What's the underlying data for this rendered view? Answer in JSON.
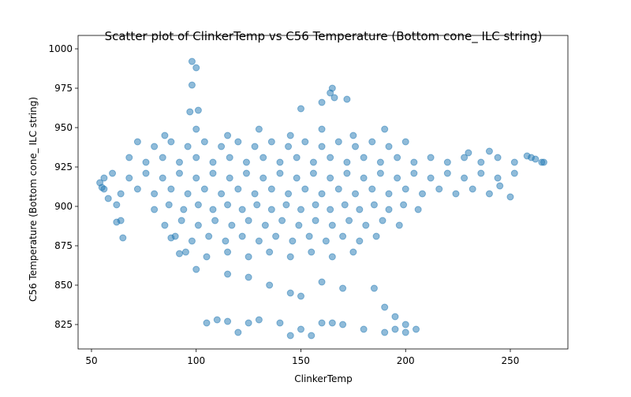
{
  "chart_data": {
    "type": "scatter",
    "title": "Scatter plot of ClinkerTemp vs C56 Temperature (Bottom cone_ ILC string)",
    "x_label": "ClinkerTemp",
    "y_label": "C56 Temperature (Bottom cone_ ILC string)",
    "color": "#1f77b4",
    "alpha": 0.5,
    "xlim": [
      43.6,
      277.5
    ],
    "ylim": [
      809.5,
      1008.5
    ],
    "xticks": [
      50,
      100,
      150,
      200,
      250
    ],
    "yticks": [
      825,
      850,
      875,
      900,
      925,
      950,
      975,
      1000
    ],
    "grid": false,
    "x": [
      72,
      80,
      88,
      96,
      104,
      112,
      120,
      128,
      136,
      144,
      152,
      160,
      168,
      176,
      184,
      192,
      200,
      68,
      76,
      84,
      92,
      100,
      108,
      116,
      124,
      132,
      140,
      148,
      156,
      164,
      172,
      180,
      188,
      196,
      204,
      212,
      220,
      228,
      236,
      244,
      252,
      260,
      266,
      60,
      68,
      76,
      84,
      92,
      100,
      108,
      116,
      124,
      132,
      140,
      148,
      156,
      164,
      172,
      180,
      188,
      196,
      204,
      212,
      220,
      228,
      236,
      244,
      252,
      56,
      64,
      72,
      80,
      88,
      96,
      104,
      112,
      120,
      128,
      136,
      144,
      152,
      160,
      168,
      176,
      184,
      192,
      200,
      208,
      216,
      224,
      232,
      240,
      62,
      80,
      87,
      94,
      101,
      108,
      115,
      122,
      129,
      136,
      143,
      150,
      157,
      164,
      171,
      178,
      185,
      192,
      199,
      206,
      64,
      85,
      93,
      101,
      109,
      117,
      125,
      133,
      141,
      149,
      157,
      165,
      173,
      181,
      189,
      197,
      90,
      98,
      106,
      114,
      122,
      130,
      138,
      146,
      154,
      162,
      170,
      178,
      186,
      95,
      105,
      115,
      125,
      135,
      145,
      155,
      165,
      175,
      85,
      100,
      115,
      130,
      145,
      160,
      175,
      190,
      98,
      100,
      98,
      97,
      101,
      165,
      164,
      166,
      172,
      160,
      150,
      105,
      110,
      115,
      120,
      125,
      130,
      140,
      145,
      150,
      155,
      160,
      165,
      170,
      180,
      190,
      195,
      200,
      205,
      200,
      195,
      190,
      185,
      170,
      160,
      150,
      145,
      135,
      125,
      115,
      100,
      92,
      88,
      65,
      62,
      58,
      55,
      54,
      56,
      250,
      245,
      265,
      262,
      258,
      240,
      230
    ],
    "values": [
      941,
      938,
      941,
      938,
      941,
      938,
      941,
      938,
      941,
      938,
      941,
      938,
      941,
      938,
      941,
      938,
      941,
      931,
      928,
      931,
      928,
      931,
      928,
      931,
      928,
      931,
      928,
      931,
      928,
      931,
      928,
      931,
      928,
      931,
      928,
      931,
      928,
      931,
      928,
      931,
      928,
      931,
      928,
      921,
      918,
      921,
      918,
      921,
      918,
      921,
      918,
      921,
      918,
      921,
      918,
      921,
      918,
      921,
      918,
      921,
      918,
      921,
      918,
      921,
      918,
      921,
      918,
      921,
      911,
      908,
      911,
      908,
      911,
      908,
      911,
      908,
      911,
      908,
      911,
      908,
      911,
      908,
      911,
      908,
      911,
      908,
      911,
      908,
      911,
      908,
      911,
      908,
      901,
      898,
      901,
      898,
      901,
      898,
      901,
      898,
      901,
      898,
      901,
      898,
      901,
      898,
      901,
      898,
      901,
      898,
      901,
      898,
      891,
      888,
      891,
      888,
      891,
      888,
      891,
      888,
      891,
      888,
      891,
      888,
      891,
      888,
      891,
      888,
      881,
      878,
      881,
      878,
      881,
      878,
      881,
      878,
      881,
      878,
      881,
      878,
      881,
      871,
      868,
      871,
      868,
      871,
      868,
      871,
      868,
      871,
      945,
      949,
      945,
      949,
      945,
      949,
      945,
      949,
      992,
      988,
      977,
      960,
      961,
      975,
      972,
      969,
      968,
      966,
      962,
      826,
      828,
      827,
      820,
      826,
      828,
      826,
      818,
      822,
      818,
      826,
      826,
      825,
      822,
      820,
      822,
      825,
      822,
      820,
      830,
      836,
      848,
      848,
      852,
      843,
      845,
      850,
      855,
      857,
      860,
      870,
      880,
      880,
      890,
      905,
      912,
      915,
      918,
      906,
      913,
      928,
      930,
      932,
      935,
      934
    ]
  }
}
